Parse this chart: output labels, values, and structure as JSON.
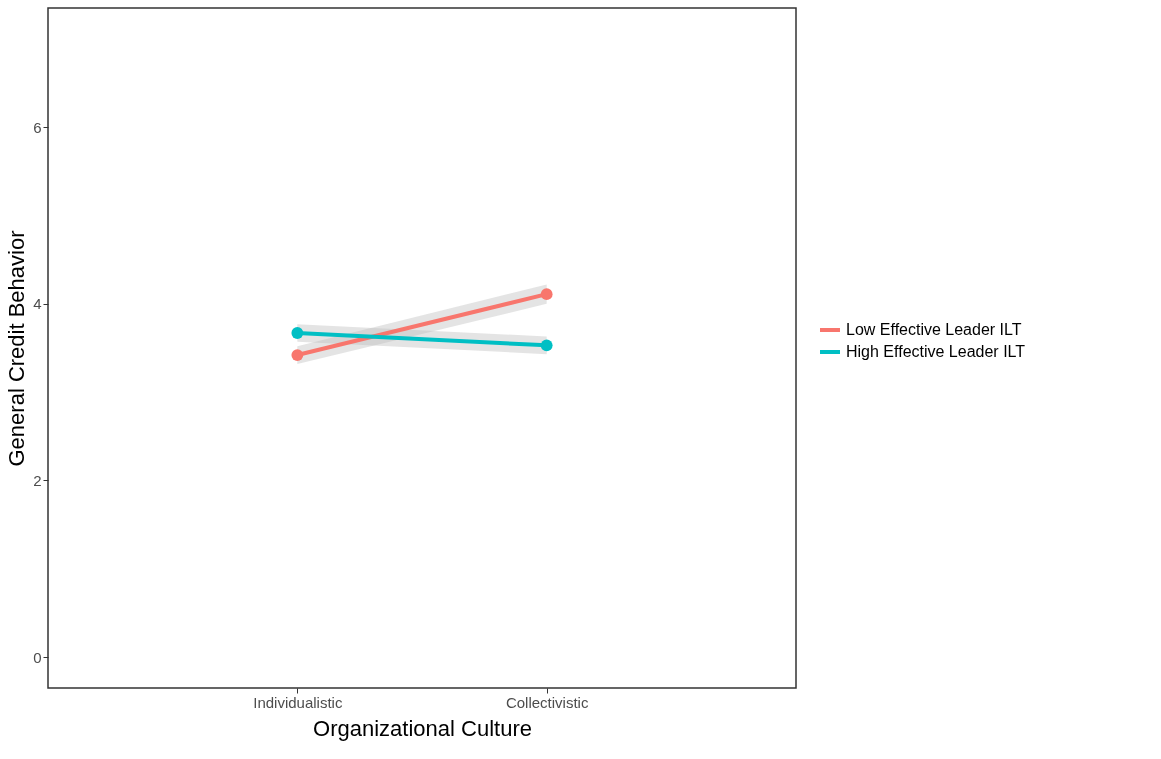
{
  "chart_data": {
    "type": "line",
    "xlabel": "Organizational Culture",
    "ylabel": "General Credit Behavior",
    "categories": [
      "Individualistic",
      "Collectivistic"
    ],
    "series": [
      {
        "name": "Low Effective Leader ILT",
        "color": "#f8766d",
        "values": [
          3.42,
          4.11
        ],
        "lower": [
          3.32,
          4.0
        ],
        "upper": [
          3.52,
          4.22
        ]
      },
      {
        "name": "High Effective Leader ILT",
        "color": "#00bfc4",
        "values": [
          3.67,
          3.53
        ],
        "lower": [
          3.57,
          3.43
        ],
        "upper": [
          3.77,
          3.63
        ]
      }
    ],
    "ylim": [
      -0.35,
      7.35
    ],
    "yticks": [
      0,
      2,
      4,
      6
    ],
    "grid": false,
    "legend": "right",
    "marker": "circle",
    "line_style": "solid"
  }
}
